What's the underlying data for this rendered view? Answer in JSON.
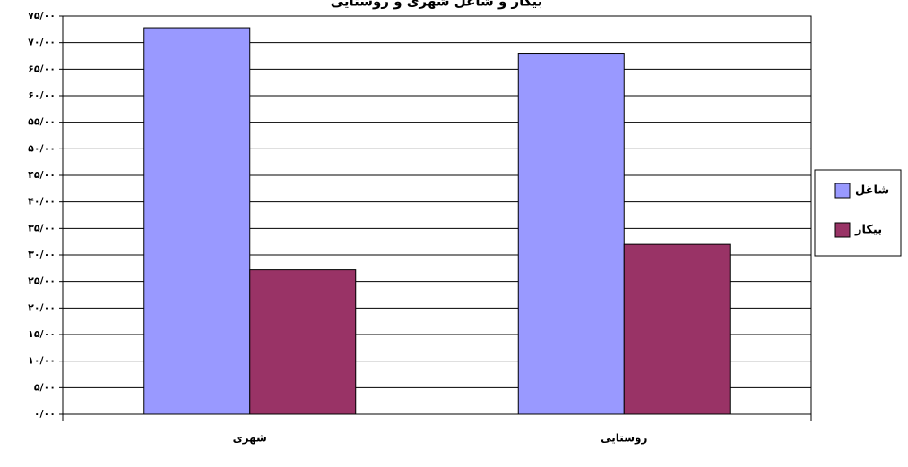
{
  "chart_data": {
    "type": "bar",
    "title": "بیکار و شاغل شهری و روستایی",
    "categories": [
      "شهری",
      "روستایی"
    ],
    "series": [
      {
        "name": "شاغل",
        "color": "#9999ff",
        "values": [
          72.8,
          68
        ]
      },
      {
        "name": "بیکار",
        "color": "#993366",
        "values": [
          27.2,
          32
        ]
      }
    ],
    "ylim": [
      0,
      75
    ],
    "yticks": [
      {
        "value": 0,
        "label": "۰/۰۰"
      },
      {
        "value": 5,
        "label": "۵/۰۰"
      },
      {
        "value": 10,
        "label": "۱۰/۰۰"
      },
      {
        "value": 15,
        "label": "۱۵/۰۰"
      },
      {
        "value": 20,
        "label": "۲۰/۰۰"
      },
      {
        "value": 25,
        "label": "۲۵/۰۰"
      },
      {
        "value": 30,
        "label": "۳۰/۰۰"
      },
      {
        "value": 35,
        "label": "۳۵/۰۰"
      },
      {
        "value": 40,
        "label": "۴۰/۰۰"
      },
      {
        "value": 45,
        "label": "۴۵/۰۰"
      },
      {
        "value": 50,
        "label": "۵۰/۰۰"
      },
      {
        "value": 55,
        "label": "۵۵/۰۰"
      },
      {
        "value": 60,
        "label": "۶۰/۰۰"
      },
      {
        "value": 65,
        "label": "۶۵/۰۰"
      },
      {
        "value": 70,
        "label": "۷۰/۰۰"
      },
      {
        "value": 75,
        "label": "۷۵/۰۰"
      }
    ],
    "grid": true,
    "legend": "right"
  }
}
